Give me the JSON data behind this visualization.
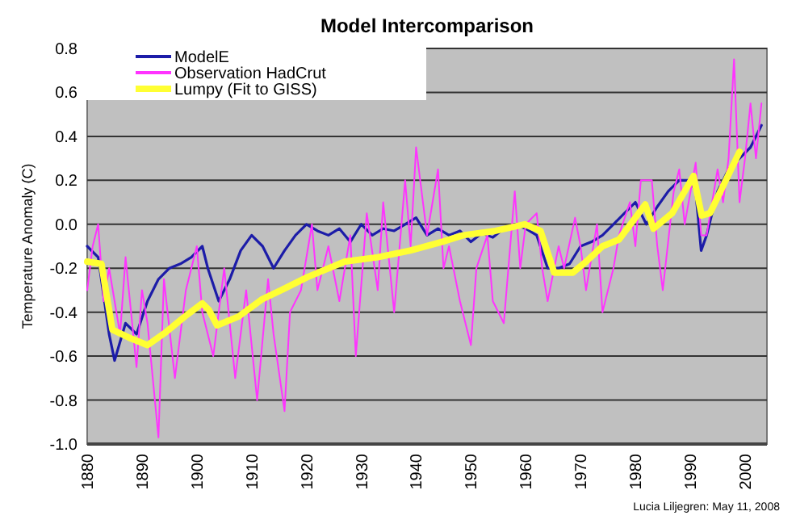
{
  "chart_data": {
    "type": "line",
    "title": "Model Intercomparison",
    "ylabel": "Temperature Anomaly (C)",
    "annotations": [
      "Lucia Liljegren: May 11, 2008"
    ],
    "xlim": [
      1880,
      2004
    ],
    "xticks": [
      1880,
      1890,
      1900,
      1910,
      1920,
      1930,
      1940,
      1950,
      1960,
      1970,
      1980,
      1990,
      2000
    ],
    "ylim": [
      -1,
      0.8
    ],
    "yticks": [
      {
        "value": -1,
        "label": "-1.0"
      },
      -0.8,
      -0.6,
      -0.4,
      -0.2,
      {
        "value": 0,
        "label": "0.0"
      },
      0.2,
      0.4,
      0.6,
      0.8
    ],
    "grid": "y",
    "legend": "top left",
    "marker": "none",
    "line_style": "solid",
    "series": [
      {
        "name": "ModelE",
        "color": "#1c1ca8",
        "x": [
          1880,
          1882,
          1884,
          1885,
          1887,
          1889,
          1891,
          1893,
          1895,
          1897,
          1899,
          1901,
          1902,
          1904,
          1906,
          1908,
          1910,
          1912,
          1914,
          1916,
          1918,
          1920,
          1922,
          1924,
          1926,
          1928,
          1930,
          1932,
          1934,
          1936,
          1938,
          1940,
          1942,
          1944,
          1946,
          1948,
          1950,
          1952,
          1954,
          1956,
          1958,
          1960,
          1962,
          1964,
          1966,
          1968,
          1970,
          1972,
          1974,
          1976,
          1978,
          1980,
          1982,
          1984,
          1986,
          1988,
          1990,
          1991,
          1992,
          1993,
          1995,
          1997,
          1999,
          2001,
          2003
        ],
        "values": [
          -0.1,
          -0.15,
          -0.5,
          -0.62,
          -0.45,
          -0.5,
          -0.35,
          -0.25,
          -0.2,
          -0.18,
          -0.15,
          -0.1,
          -0.2,
          -0.35,
          -0.25,
          -0.12,
          -0.05,
          -0.1,
          -0.2,
          -0.12,
          -0.05,
          0.0,
          -0.03,
          -0.05,
          -0.02,
          -0.08,
          0.0,
          -0.05,
          -0.02,
          -0.03,
          0.0,
          0.03,
          -0.05,
          -0.02,
          -0.05,
          -0.03,
          -0.08,
          -0.04,
          -0.06,
          -0.02,
          0.0,
          -0.02,
          -0.05,
          -0.2,
          -0.2,
          -0.18,
          -0.1,
          -0.08,
          -0.05,
          0.0,
          0.05,
          0.1,
          0.0,
          0.08,
          0.15,
          0.2,
          0.2,
          0.15,
          -0.12,
          -0.05,
          0.15,
          0.25,
          0.3,
          0.35,
          0.45
        ]
      },
      {
        "name": "Observation HadCrut",
        "color": "#ff33ff",
        "x": [
          1880,
          1881,
          1882,
          1883,
          1884,
          1886,
          1887,
          1889,
          1890,
          1891,
          1893,
          1894,
          1896,
          1898,
          1900,
          1901,
          1903,
          1905,
          1907,
          1909,
          1911,
          1913,
          1914,
          1916,
          1917,
          1919,
          1921,
          1922,
          1924,
          1926,
          1928,
          1929,
          1931,
          1933,
          1934,
          1936,
          1938,
          1939,
          1940,
          1942,
          1944,
          1945,
          1946,
          1948,
          1950,
          1951,
          1953,
          1954,
          1956,
          1958,
          1959,
          1960,
          1962,
          1963,
          1964,
          1966,
          1967,
          1969,
          1970,
          1971,
          1973,
          1974,
          1976,
          1977,
          1979,
          1980,
          1981,
          1983,
          1984,
          1985,
          1987,
          1988,
          1989,
          1991,
          1992,
          1993,
          1995,
          1996,
          1997,
          1998,
          1999,
          2000,
          2001,
          2002,
          2003
        ],
        "values": [
          -0.3,
          -0.1,
          0.0,
          -0.35,
          -0.2,
          -0.5,
          -0.15,
          -0.65,
          -0.3,
          -0.45,
          -0.97,
          -0.25,
          -0.7,
          -0.3,
          -0.1,
          -0.4,
          -0.6,
          -0.2,
          -0.7,
          -0.3,
          -0.8,
          -0.25,
          -0.5,
          -0.85,
          -0.4,
          -0.3,
          0.0,
          -0.3,
          -0.1,
          -0.35,
          -0.05,
          -0.6,
          0.05,
          -0.3,
          0.1,
          -0.4,
          0.2,
          -0.1,
          0.35,
          -0.05,
          0.25,
          -0.2,
          -0.1,
          -0.35,
          -0.55,
          -0.2,
          -0.05,
          -0.35,
          -0.45,
          0.15,
          -0.2,
          0.0,
          0.05,
          -0.2,
          -0.35,
          -0.1,
          -0.2,
          0.03,
          -0.1,
          -0.3,
          0.0,
          -0.4,
          -0.2,
          -0.05,
          0.1,
          -0.1,
          0.2,
          0.2,
          -0.1,
          -0.3,
          0.15,
          0.25,
          0.0,
          0.28,
          -0.05,
          -0.05,
          0.25,
          0.1,
          0.3,
          0.75,
          0.1,
          0.3,
          0.55,
          0.3,
          0.55
        ]
      },
      {
        "name": "Lumpy (Fit to GISS)",
        "color": "#ffff33",
        "x": [
          1880,
          1882.6,
          1884.6,
          1888,
          1891,
          1894.4,
          1897.8,
          1901,
          1902.2,
          1903.7,
          1907.6,
          1912,
          1915.4,
          1920.2,
          1927,
          1933,
          1938.9,
          1944.7,
          1948.6,
          1954.5,
          1959.8,
          1962.7,
          1965.2,
          1968.6,
          1971,
          1974,
          1977,
          1981.8,
          1983.3,
          1986.7,
          1990.6,
          1992.1,
          1993.6,
          1999
        ],
        "values": [
          -0.17,
          -0.18,
          -0.48,
          -0.52,
          -0.55,
          -0.49,
          -0.42,
          -0.36,
          -0.39,
          -0.46,
          -0.42,
          -0.34,
          -0.3,
          -0.24,
          -0.17,
          -0.15,
          -0.12,
          -0.08,
          -0.05,
          -0.03,
          0.0,
          -0.03,
          -0.22,
          -0.22,
          -0.17,
          -0.1,
          -0.07,
          0.09,
          -0.02,
          0.05,
          0.22,
          0.04,
          0.05,
          0.33
        ]
      }
    ]
  }
}
